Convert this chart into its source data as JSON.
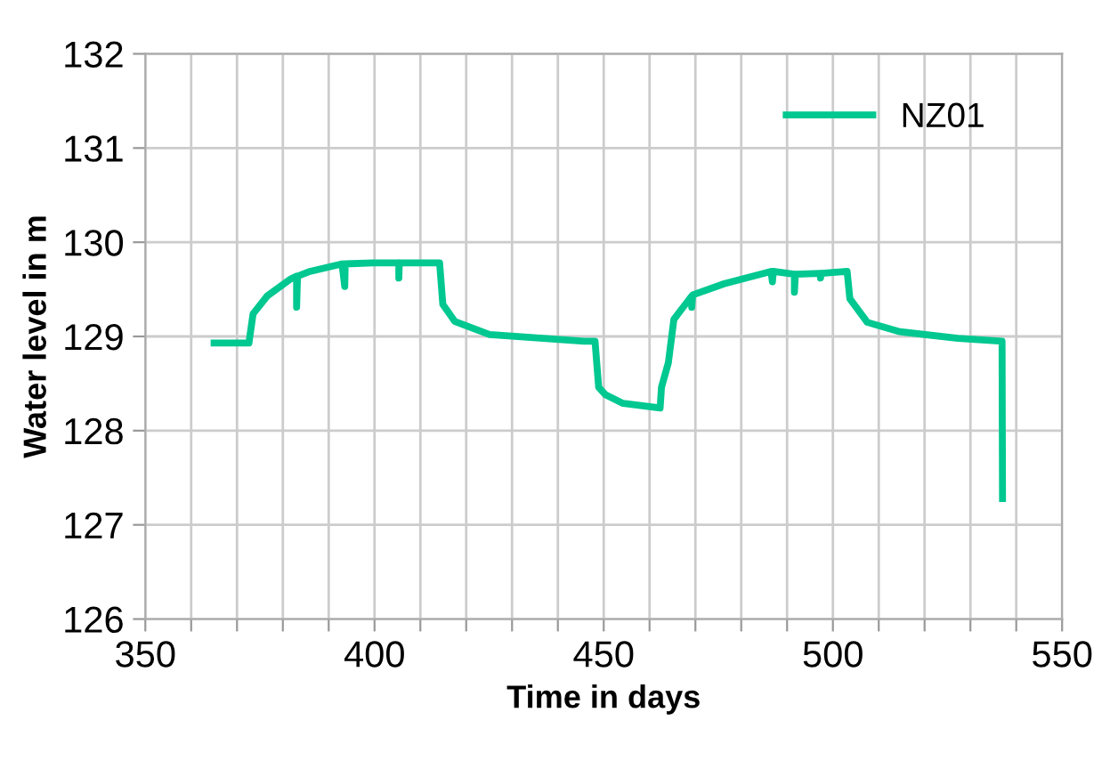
{
  "chart_data": {
    "type": "line",
    "xlabel": "Time in days",
    "ylabel": "Water level in m",
    "xlim": [
      350,
      550
    ],
    "ylim": [
      126,
      132
    ],
    "xticks": [
      350,
      {
        "value": 360,
        "label": null
      },
      {
        "value": 370,
        "label": null
      },
      {
        "value": 380,
        "label": null
      },
      {
        "value": 390,
        "label": null
      },
      400,
      {
        "value": 410,
        "label": null
      },
      {
        "value": 420,
        "label": null
      },
      {
        "value": 430,
        "label": null
      },
      {
        "value": 440,
        "label": null
      },
      450,
      {
        "value": 460,
        "label": null
      },
      {
        "value": 470,
        "label": null
      },
      {
        "value": 480,
        "label": null
      },
      {
        "value": 490,
        "label": null
      },
      500,
      {
        "value": 510,
        "label": null
      },
      {
        "value": 520,
        "label": null
      },
      {
        "value": 530,
        "label": null
      },
      {
        "value": 540,
        "label": null
      },
      550
    ],
    "yticks": [
      126,
      127,
      128,
      129,
      130,
      131,
      132
    ],
    "grid": true,
    "legend": "top right",
    "marker": "none",
    "line_style": "solid",
    "series": [
      {
        "name": "NZ01",
        "color": "#00c890",
        "x": [
          365,
          372.6,
          373.5,
          376.6,
          381.7,
          383,
          383,
          383.2,
          385.9,
          392.9,
          393.5,
          393.6,
          399.6,
          405.3,
          405.3,
          405.4,
          414.2,
          414.9,
          417.5,
          425.1,
          445.7,
          448.1,
          448.9,
          450.4,
          454.2,
          462.3,
          462.6,
          464.1,
          465.3,
          469.2,
          469.2,
          469.4,
          476.3,
          486.5,
          486.8,
          487,
          491.6,
          491.6,
          491.8,
          497.3,
          497.3,
          497.5,
          503.1,
          503.7,
          507.5,
          514.6,
          527.3,
          536.9,
          537.0
        ],
        "values": [
          128.93,
          128.93,
          129.24,
          129.43,
          129.61,
          129.64,
          129.31,
          129.64,
          129.69,
          129.77,
          129.53,
          129.77,
          129.78,
          129.78,
          129.62,
          129.78,
          129.78,
          129.34,
          129.16,
          129.02,
          128.95,
          128.95,
          128.46,
          128.38,
          128.29,
          128.24,
          128.46,
          128.72,
          129.18,
          129.43,
          129.31,
          129.44,
          129.56,
          129.69,
          129.58,
          129.69,
          129.66,
          129.47,
          129.66,
          129.67,
          129.62,
          129.67,
          129.69,
          129.4,
          129.15,
          129.05,
          128.98,
          128.95,
          127.28
        ]
      }
    ]
  }
}
